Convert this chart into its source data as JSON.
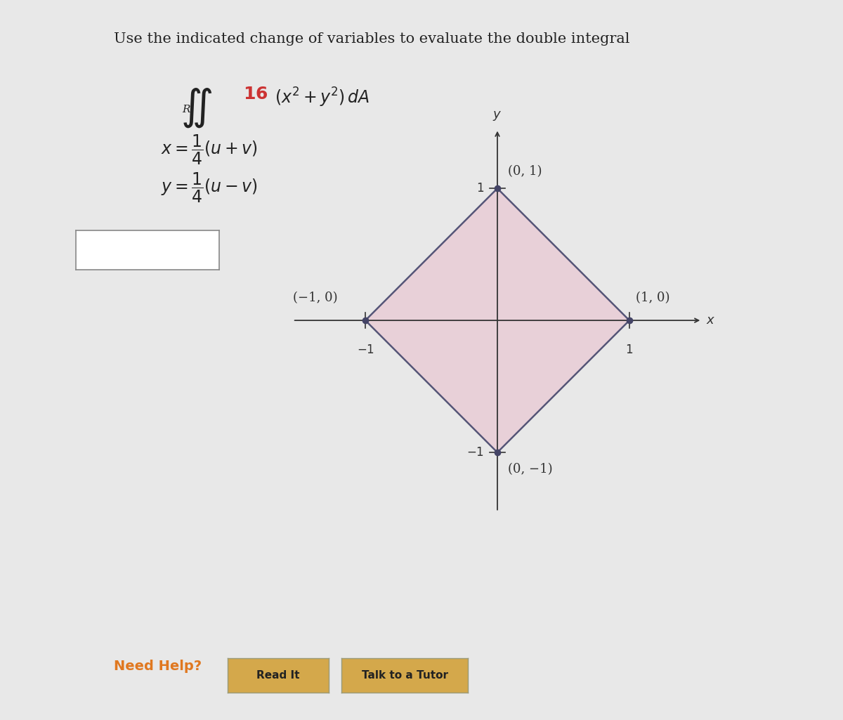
{
  "bg_color": "#e8e8e8",
  "panel_color": "#f0f0f0",
  "title_text": "Use the indicated change of variables to evaluate the double integral",
  "title_color": "#222222",
  "title_fontsize": 15,
  "integral_color": "#222222",
  "red_color": "#cc3333",
  "equation_fontsize": 17,
  "diamond_vertices_x": [
    0,
    1,
    0,
    -1,
    0
  ],
  "diamond_vertices_y": [
    1,
    0,
    -1,
    0,
    1
  ],
  "diamond_fill_color": "#e8d0d8",
  "diamond_edge_color": "#555577",
  "diamond_linewidth": 1.8,
  "axis_color": "#333333",
  "tick_label_color": "#333333",
  "point_color": "#444466",
  "point_size": 6,
  "label_minus1_0": "(−1, 0)",
  "label_1_0": "(1, 0)",
  "label_0_1": "(0, 1)",
  "label_0_m1": "(0, −1)",
  "annotation_fontsize": 13,
  "need_help_color": "#e07820",
  "button_bg": "#d4a84b",
  "button_text_color": "#222222",
  "button_fontsize": 11,
  "input_box_color": "#ffffff",
  "input_box_edge": "#888888"
}
